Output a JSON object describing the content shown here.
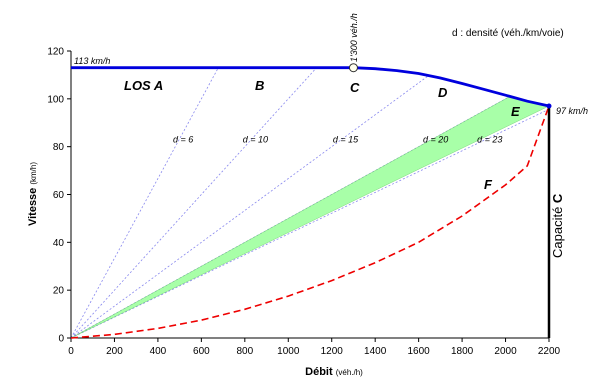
{
  "chart_data": {
    "type": "line",
    "title": "",
    "note": "d : densité (véh./km/voie)",
    "xlabel": "Débit",
    "xlabel_unit": "(véh./h)",
    "ylabel": "Vitesse",
    "ylabel_unit": "(km/h)",
    "xlim": [
      0,
      2200
    ],
    "ylim": [
      0,
      120
    ],
    "xticks": [
      0,
      200,
      400,
      600,
      800,
      1000,
      1200,
      1400,
      1600,
      1800,
      2000,
      2200
    ],
    "yticks": [
      0,
      20,
      40,
      60,
      80,
      100,
      120
    ],
    "speed_flow_curve": {
      "x": [
        0,
        1300,
        1400,
        1500,
        1600,
        1700,
        1800,
        1900,
        2000,
        2100,
        2200
      ],
      "y": [
        113,
        113,
        112.6,
        111.8,
        110.6,
        108.7,
        106.4,
        104,
        101.5,
        99,
        97
      ]
    },
    "congested_curve": {
      "x": [
        0,
        200,
        400,
        600,
        800,
        1000,
        1200,
        1400,
        1600,
        1800,
        2000,
        2100,
        2200
      ],
      "y": [
        0,
        1.5,
        4,
        7.5,
        12,
        17.5,
        24,
        31.5,
        40,
        51,
        64,
        72,
        97
      ]
    },
    "density_lines": [
      {
        "label": "d = 6",
        "density": 6
      },
      {
        "label": "d = 10",
        "density": 10
      },
      {
        "label": "d = 15",
        "density": 15
      },
      {
        "label": "d = 20",
        "density": 20
      },
      {
        "label": "d = 23",
        "density": 23
      }
    ],
    "los_labels": [
      "LOS A",
      "B",
      "C",
      "D",
      "E",
      "F"
    ],
    "annotations": {
      "free_flow_speed": "113 km/h",
      "breakpoint_flow": "1'300 véh./h",
      "breakpoint": {
        "x": 1300,
        "y": 113
      },
      "capacity_speed": "97 km/h",
      "capacity": {
        "x": 2200,
        "y": 97
      },
      "capacity_label_prefix": "Capacité",
      "capacity_label_letter": "C"
    },
    "colors": {
      "speed_flow_curve": "#0000dd",
      "congested_curve": "#ee0000",
      "density_lines": "#8888ee",
      "los_e_band": "#99ff99",
      "capacity_line": "#000000"
    },
    "grid": false
  }
}
